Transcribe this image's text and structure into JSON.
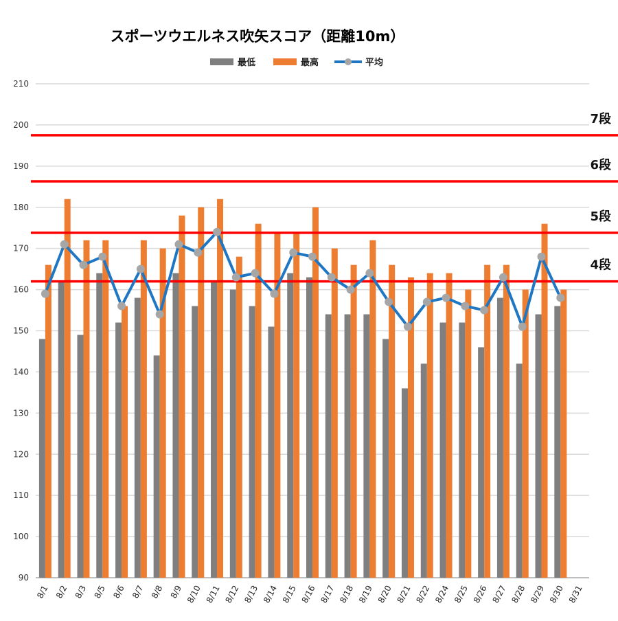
{
  "chart_data": {
    "type": "bar",
    "title": "スポーツウエルネス吹矢スコア（距離10m）",
    "xlabel": "",
    "ylabel": "",
    "ylim": [
      90,
      210
    ],
    "yticks": [
      90,
      100,
      110,
      120,
      130,
      140,
      150,
      160,
      170,
      180,
      190,
      200,
      210
    ],
    "grid": true,
    "legend_position": "top",
    "categories": [
      "8/1",
      "8/2",
      "8/3",
      "8/5",
      "8/6",
      "8/7",
      "8/8",
      "8/9",
      "8/10",
      "8/11",
      "8/12",
      "8/13",
      "8/14",
      "8/15",
      "8/16",
      "8/17",
      "8/18",
      "8/19",
      "8/20",
      "8/21",
      "8/22",
      "8/24",
      "8/25",
      "8/26",
      "8/27",
      "8/28",
      "8/29",
      "8/30",
      "8/31"
    ],
    "series": [
      {
        "name": "最低",
        "type": "bar",
        "color": "#7f7f7f",
        "values": [
          148,
          162,
          149,
          164,
          152,
          158,
          144,
          164,
          156,
          162,
          160,
          156,
          151,
          164,
          163,
          154,
          154,
          154,
          148,
          136,
          142,
          152,
          152,
          146,
          158,
          142,
          154,
          156,
          null
        ]
      },
      {
        "name": "最高",
        "type": "bar",
        "color": "#ed7d31",
        "values": [
          166,
          182,
          172,
          172,
          156,
          172,
          170,
          178,
          180,
          182,
          168,
          176,
          174,
          174,
          180,
          170,
          166,
          172,
          166,
          163,
          164,
          164,
          160,
          166,
          166,
          160,
          176,
          160,
          null
        ]
      },
      {
        "name": "平均",
        "type": "line",
        "color": "#1f77c4",
        "marker_color": "#a6a6a6",
        "values": [
          159,
          171,
          166,
          168,
          156,
          165,
          154,
          171,
          169,
          174,
          163,
          164,
          159,
          169,
          168,
          163,
          160,
          164,
          157,
          151,
          157,
          158,
          156,
          155,
          163,
          151,
          168,
          158,
          null
        ]
      }
    ],
    "reference_lines": [
      {
        "label": "7段",
        "value": 197.5,
        "color": "#ff0000"
      },
      {
        "label": "6段",
        "value": 186.3,
        "color": "#ff0000"
      },
      {
        "label": "5段",
        "value": 173.8,
        "color": "#ff0000"
      },
      {
        "label": "4段",
        "value": 162,
        "color": "#ff0000"
      }
    ]
  }
}
